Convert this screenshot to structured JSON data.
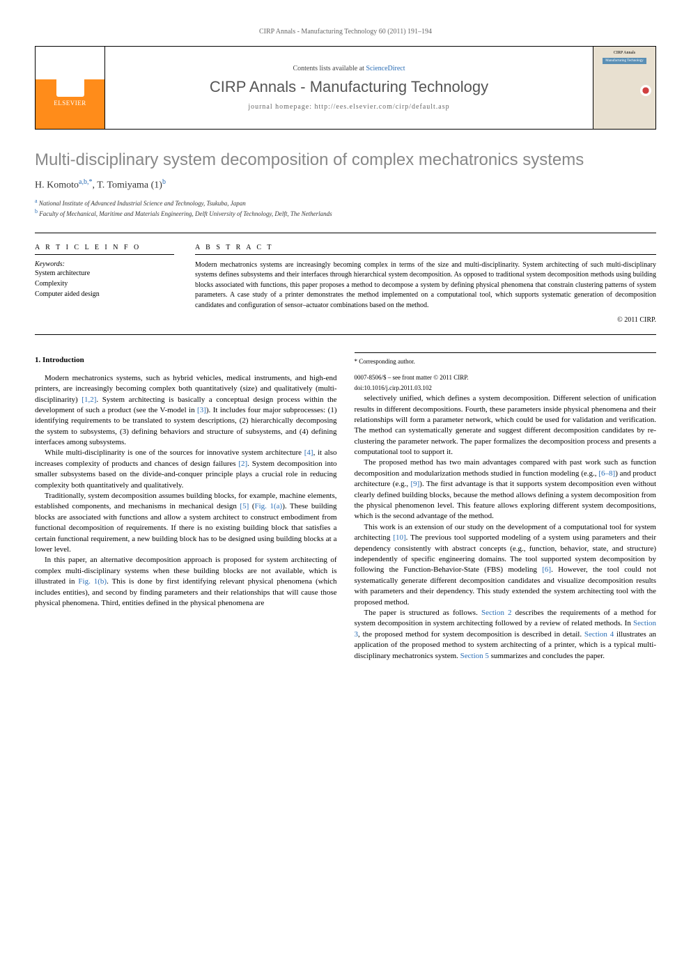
{
  "header_bar": "CIRP Annals - Manufacturing Technology 60 (2011) 191–194",
  "journal_box": {
    "publisher": "ELSEVIER",
    "contents_prefix": "Contents lists available at ",
    "contents_link": "ScienceDirect",
    "journal_name": "CIRP Annals - Manufacturing Technology",
    "homepage_label": "journal homepage: http://ees.elsevier.com/cirp/default.asp",
    "cover_label": "CIRP Annals",
    "cover_sub": "Manufacturing Technology"
  },
  "article": {
    "title": "Multi-disciplinary system decomposition of complex mechatronics systems",
    "authors_html": [
      {
        "name": "H. Komoto",
        "sup": "a,b,*"
      },
      {
        "name": ", T. Tomiyama (1)",
        "sup": "b"
      }
    ],
    "affiliations": [
      {
        "sup": "a",
        "text": "National Institute of Advanced Industrial Science and Technology, Tsukuba, Japan"
      },
      {
        "sup": "b",
        "text": "Faculty of Mechanical, Maritime and Materials Engineering, Delft University of Technology, Delft, The Netherlands"
      }
    ]
  },
  "info": {
    "heading": "A R T I C L E  I N F O",
    "keywords_label": "Keywords:",
    "keywords": [
      "System architecture",
      "Complexity",
      "Computer aided design"
    ]
  },
  "abstract": {
    "heading": "A B S T R A C T",
    "text": "Modern mechatronics systems are increasingly becoming complex in terms of the size and multi-disciplinarity. System architecting of such multi-disciplinary systems defines subsystems and their interfaces through hierarchical system decomposition. As opposed to traditional system decomposition methods using building blocks associated with functions, this paper proposes a method to decompose a system by defining physical phenomena that constrain clustering patterns of system parameters. A case study of a printer demonstrates the method implemented on a computational tool, which supports systematic generation of decomposition candidates and configuration of sensor–actuator combinations based on the method.",
    "copyright": "© 2011 CIRP."
  },
  "sections": {
    "s1_heading": "1. Introduction",
    "p1": "Modern mechatronics systems, such as hybrid vehicles, medical instruments, and high-end printers, are increasingly becoming complex both quantitatively (size) and qualitatively (multi-disciplinarity) [1,2]. System architecting is basically a conceptual design process within the development of such a product (see the V-model in [3]). It includes four major subprocesses: (1) identifying requirements to be translated to system descriptions, (2) hierarchically decomposing the system to subsystems, (3) defining behaviors and structure of subsystems, and (4) defining interfaces among subsystems.",
    "p2": "While multi-disciplinarity is one of the sources for innovative system architecture [4], it also increases complexity of products and chances of design failures [2]. System decomposition into smaller subsystems based on the divide-and-conquer principle plays a crucial role in reducing complexity both quantitatively and qualitatively.",
    "p3": "Traditionally, system decomposition assumes building blocks, for example, machine elements, established components, and mechanisms in mechanical design [5] (Fig. 1(a)). These building blocks are associated with functions and allow a system architect to construct embodiment from functional decomposition of requirements. If there is no existing building block that satisfies a certain functional requirement, a new building block has to be designed using building blocks at a lower level.",
    "p4": "In this paper, an alternative decomposition approach is proposed for system architecting of complex multi-disciplinary systems when these building blocks are not available, which is illustrated in Fig. 1(b). This is done by first identifying relevant physical phenomena (which includes entities), and second by finding parameters and their relationships that will cause those physical phenomena. Third, entities defined in the physical phenomena are",
    "p5": "selectively unified, which defines a system decomposition. Different selection of unification results in different decompositions. Fourth, these parameters inside physical phenomena and their relationships will form a parameter network, which could be used for validation and verification. The method can systematically generate and suggest different decomposition candidates by re-clustering the parameter network. The paper formalizes the decomposition process and presents a computational tool to support it.",
    "p6": "The proposed method has two main advantages compared with past work such as function decomposition and modularization methods studied in function modeling (e.g., [6–8]) and product architecture (e.g., [9]). The first advantage is that it supports system decomposition even without clearly defined building blocks, because the method allows defining a system decomposition from the physical phenomenon level. This feature allows exploring different system decompositions, which is the second advantage of the method.",
    "p7": "This work is an extension of our study on the development of a computational tool for system architecting [10]. The previous tool supported modeling of a system using parameters and their dependency consistently with abstract concepts (e.g., function, behavior, state, and structure) independently of specific engineering domains. The tool supported system decomposition by following the Function-Behavior-State (FBS) modeling [6]. However, the tool could not systematically generate different decomposition candidates and visualize decomposition results with parameters and their dependency. This study extended the system architecting tool with the proposed method.",
    "p8": "The paper is structured as follows. Section 2 describes the requirements of a method for system decomposition in system architecting followed by a review of related methods. In Section 3, the proposed method for system decomposition is described in detail. Section 4 illustrates an application of the proposed method to system architecting of a printer, which is a typical multi-disciplinary mechatronics system. Section 5 summarizes and concludes the paper."
  },
  "footer": {
    "corresponding": "* Corresponding author.",
    "issn": "0007-8506/$ – see front matter © 2011 CIRP.",
    "doi": "doi:10.1016/j.cirp.2011.03.102"
  },
  "colors": {
    "link": "#2a6db5",
    "title_gray": "#888888",
    "text": "#000000",
    "elsevier_orange": "#ff8c1a"
  }
}
